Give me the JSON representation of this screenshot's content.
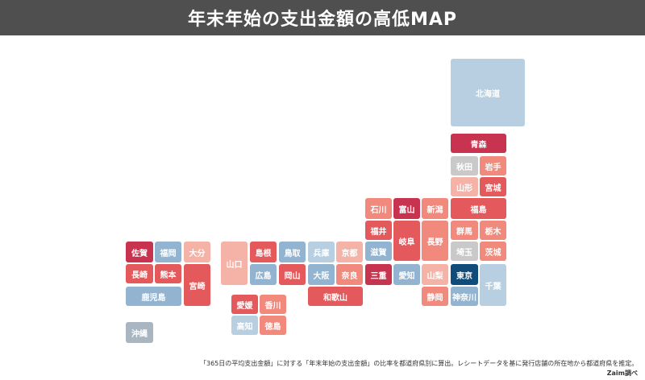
{
  "title": "年末年始の支出金額の高低MAP",
  "prefectures": [
    {
      "name": "北海道",
      "color": "lblue"
    },
    {
      "name": "青森",
      "color": "vhigh"
    },
    {
      "name": "秋田",
      "color": "grey"
    },
    {
      "name": "岩手",
      "color": "mid"
    },
    {
      "name": "山形",
      "color": "low"
    },
    {
      "name": "宮城",
      "color": "high"
    },
    {
      "name": "福島",
      "color": "high"
    },
    {
      "name": "石川",
      "color": "mid"
    },
    {
      "name": "富山",
      "color": "vhigh"
    },
    {
      "name": "新潟",
      "color": "mid"
    },
    {
      "name": "福井",
      "color": "high"
    },
    {
      "name": "岐阜",
      "color": "high"
    },
    {
      "name": "長野",
      "color": "mid"
    },
    {
      "name": "群馬",
      "color": "mid"
    },
    {
      "name": "栃木",
      "color": "mid"
    },
    {
      "name": "滋賀",
      "color": "blue"
    },
    {
      "name": "埼玉",
      "color": "grey"
    },
    {
      "name": "茨城",
      "color": "mid"
    },
    {
      "name": "佐賀",
      "color": "vhigh"
    },
    {
      "name": "福岡",
      "color": "blue"
    },
    {
      "name": "大分",
      "color": "low"
    },
    {
      "name": "山口",
      "color": "low"
    },
    {
      "name": "島根",
      "color": "high"
    },
    {
      "name": "鳥取",
      "color": "blue"
    },
    {
      "name": "兵庫",
      "color": "lblue"
    },
    {
      "name": "京都",
      "color": "low"
    },
    {
      "name": "長崎",
      "color": "high"
    },
    {
      "name": "熊本",
      "color": "high"
    },
    {
      "name": "宮崎",
      "color": "high"
    },
    {
      "name": "広島",
      "color": "blue"
    },
    {
      "name": "岡山",
      "color": "high"
    },
    {
      "name": "大阪",
      "color": "blue"
    },
    {
      "name": "奈良",
      "color": "mid"
    },
    {
      "name": "三重",
      "color": "vhigh"
    },
    {
      "name": "愛知",
      "color": "blue"
    },
    {
      "name": "山梨",
      "color": "low"
    },
    {
      "name": "東京",
      "color": "navy"
    },
    {
      "name": "千葉",
      "color": "lblue"
    },
    {
      "name": "鹿児島",
      "color": "blue"
    },
    {
      "name": "愛媛",
      "color": "high"
    },
    {
      "name": "香川",
      "color": "mid"
    },
    {
      "name": "和歌山",
      "color": "high"
    },
    {
      "name": "静岡",
      "color": "mid"
    },
    {
      "name": "神奈川",
      "color": "blue"
    },
    {
      "name": "高知",
      "color": "lblue"
    },
    {
      "name": "徳島",
      "color": "mid"
    },
    {
      "name": "沖縄",
      "color": "slate"
    }
  ],
  "footnote": "「365日の平均支出金額」に対する「年末年始の支出金額」の比率を都道府県別に算出。レシートデータを基に発行店舗の所在地から都道府県を推定。",
  "credit": "Zaim調べ"
}
